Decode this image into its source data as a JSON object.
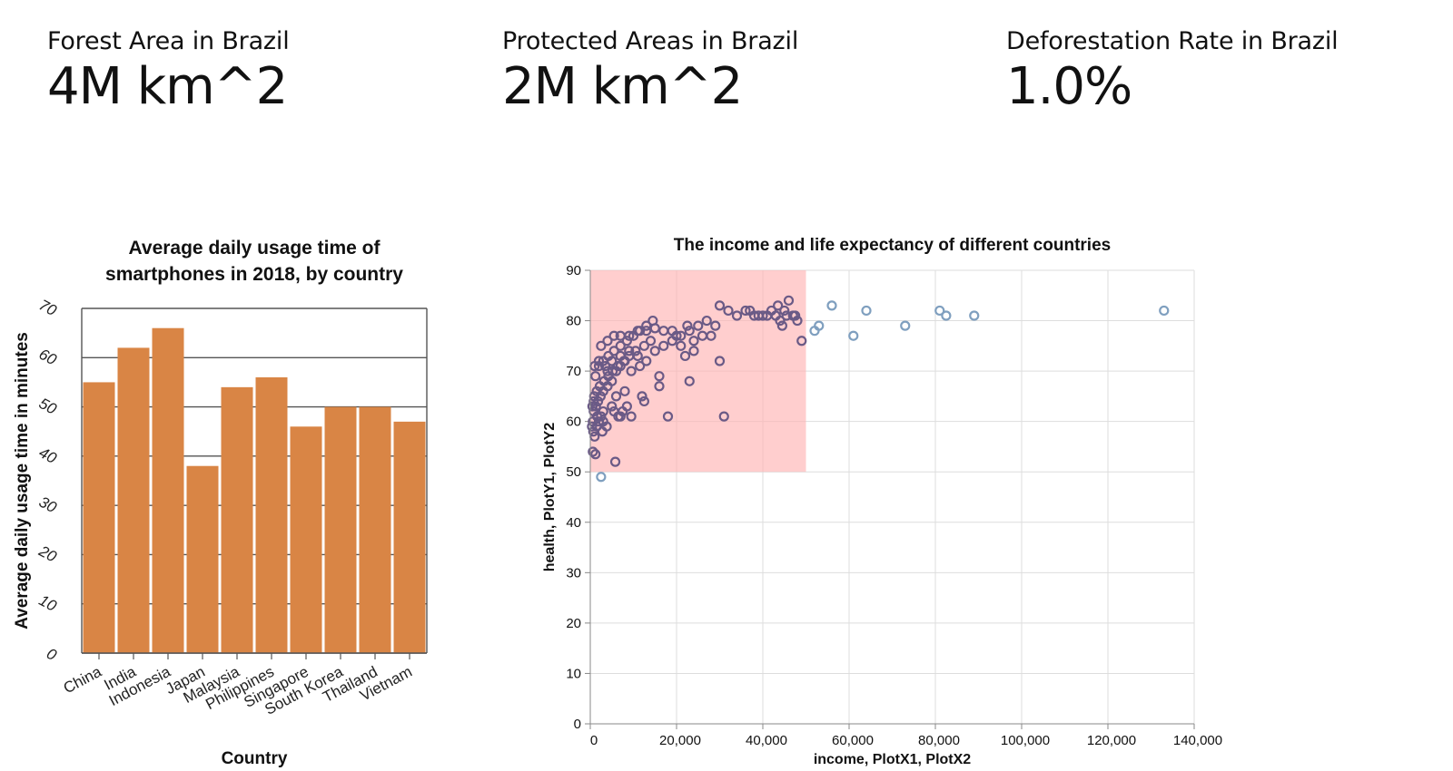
{
  "kpis": [
    {
      "label": "Forest Area in Brazil",
      "value": "4M km^2"
    },
    {
      "label": "Protected Areas in Brazil",
      "value": "2M km^2"
    },
    {
      "label": "Deforestation Rate in Brazil",
      "value": "1.0%"
    }
  ],
  "colors": {
    "bar": "#d98545",
    "scatter_stroke": "#7f9fbf",
    "scatter_selected": "#6a5a86",
    "brush": "#ffb3b3"
  },
  "chart_data": [
    {
      "type": "bar",
      "title_lines": [
        "Average daily usage time of",
        "smartphones in 2018, by country"
      ],
      "xlabel": "Country",
      "ylabel": "Average daily usage time in minutes",
      "ylim": [
        0,
        70
      ],
      "yticks": [
        "0",
        "10",
        "20",
        "30",
        "40",
        "50",
        "60",
        "70"
      ],
      "grid": true,
      "categories": [
        "China",
        "India",
        "Indonesia",
        "Japan",
        "Malaysia",
        "Philippines",
        "Singapore",
        "South Korea",
        "Thailand",
        "Vietnam"
      ],
      "values": [
        55,
        62,
        66,
        38,
        54,
        56,
        46,
        50,
        50,
        47
      ]
    },
    {
      "type": "scatter",
      "title": "The income and life expectancy of different countries",
      "xlabel": "income, PlotX1, PlotX2",
      "ylabel": "health, PlotY1, PlotY2",
      "xlim": [
        0,
        140000
      ],
      "ylim": [
        0,
        90
      ],
      "xticks": [
        "0",
        "20,000",
        "40,000",
        "60,000",
        "80,000",
        "100,000",
        "120,000",
        "140,000"
      ],
      "yticks": [
        "0",
        "10",
        "20",
        "30",
        "40",
        "50",
        "60",
        "70",
        "80",
        "90"
      ],
      "grid": true,
      "brush": {
        "x": [
          0,
          50000
        ],
        "y": [
          50,
          90
        ]
      },
      "points": [
        [
          600,
          54
        ],
        [
          1200,
          53.5
        ],
        [
          2500,
          49
        ],
        [
          5800,
          52
        ],
        [
          700,
          58
        ],
        [
          1000,
          57
        ],
        [
          1500,
          59
        ],
        [
          2000,
          60
        ],
        [
          2500,
          61
        ],
        [
          3000,
          60
        ],
        [
          800,
          62
        ],
        [
          1300,
          63
        ],
        [
          1800,
          64
        ],
        [
          2400,
          65
        ],
        [
          3000,
          66
        ],
        [
          4000,
          67
        ],
        [
          5000,
          68
        ],
        [
          6000,
          70
        ],
        [
          7000,
          71
        ],
        [
          8000,
          72
        ],
        [
          900,
          65
        ],
        [
          1500,
          66
        ],
        [
          2200,
          67
        ],
        [
          3200,
          68
        ],
        [
          4200,
          69
        ],
        [
          5200,
          70
        ],
        [
          6400,
          71
        ],
        [
          7800,
          72
        ],
        [
          9000,
          73
        ],
        [
          10500,
          74
        ],
        [
          1200,
          69
        ],
        [
          2000,
          71
        ],
        [
          3000,
          72
        ],
        [
          4200,
          73
        ],
        [
          5500,
          74
        ],
        [
          7000,
          75
        ],
        [
          8500,
          76
        ],
        [
          10000,
          77
        ],
        [
          11500,
          78
        ],
        [
          13000,
          79
        ],
        [
          2500,
          75
        ],
        [
          4000,
          76
        ],
        [
          5500,
          77
        ],
        [
          7000,
          77
        ],
        [
          9000,
          77
        ],
        [
          11000,
          78
        ],
        [
          13000,
          78
        ],
        [
          15000,
          78.5
        ],
        [
          17000,
          78
        ],
        [
          19000,
          78
        ],
        [
          3000,
          62
        ],
        [
          5000,
          63
        ],
        [
          7000,
          61
        ],
        [
          9500,
          61
        ],
        [
          6000,
          65
        ],
        [
          8000,
          66
        ],
        [
          12000,
          65
        ],
        [
          16000,
          67
        ],
        [
          12500,
          64
        ],
        [
          18000,
          61
        ],
        [
          15000,
          74
        ],
        [
          17000,
          75
        ],
        [
          19000,
          76
        ],
        [
          21000,
          77
        ],
        [
          23000,
          78
        ],
        [
          25000,
          79
        ],
        [
          27000,
          80
        ],
        [
          29000,
          79
        ],
        [
          24000,
          76
        ],
        [
          26000,
          77
        ],
        [
          28000,
          77
        ],
        [
          22000,
          73
        ],
        [
          24000,
          74
        ],
        [
          30000,
          83
        ],
        [
          32000,
          82
        ],
        [
          34000,
          81
        ],
        [
          36000,
          82
        ],
        [
          38000,
          81
        ],
        [
          40000,
          81
        ],
        [
          42000,
          82
        ],
        [
          43000,
          81
        ],
        [
          44000,
          80
        ],
        [
          45000,
          82
        ],
        [
          46000,
          84
        ],
        [
          47000,
          81
        ],
        [
          48000,
          80
        ],
        [
          49000,
          76
        ],
        [
          30000,
          72
        ],
        [
          31000,
          61
        ],
        [
          23000,
          68
        ],
        [
          16000,
          69
        ],
        [
          13000,
          72
        ],
        [
          11000,
          73
        ],
        [
          9000,
          74
        ],
        [
          7000,
          73
        ],
        [
          5000,
          72
        ],
        [
          4000,
          70
        ],
        [
          3500,
          71
        ],
        [
          2000,
          72
        ],
        [
          1000,
          71
        ],
        [
          500,
          63
        ],
        [
          600,
          60
        ],
        [
          400,
          59
        ],
        [
          800,
          64
        ],
        [
          1600,
          61
        ],
        [
          2800,
          58
        ],
        [
          3800,
          59
        ],
        [
          5500,
          62
        ],
        [
          6500,
          61
        ],
        [
          7500,
          62
        ],
        [
          8500,
          63
        ],
        [
          9500,
          70
        ],
        [
          11500,
          71
        ],
        [
          12500,
          75
        ],
        [
          14000,
          76
        ],
        [
          14500,
          80
        ],
        [
          20000,
          77
        ],
        [
          21000,
          75
        ],
        [
          22500,
          79
        ],
        [
          37000,
          82
        ],
        [
          39000,
          81
        ],
        [
          41000,
          81
        ],
        [
          43500,
          83
        ],
        [
          44500,
          79
        ],
        [
          45500,
          81
        ],
        [
          47500,
          81
        ],
        [
          52000,
          78
        ],
        [
          53000,
          79
        ],
        [
          56000,
          83
        ],
        [
          61000,
          77
        ],
        [
          64000,
          82
        ],
        [
          73000,
          79
        ],
        [
          81000,
          82
        ],
        [
          82500,
          81
        ],
        [
          89000,
          81
        ],
        [
          133000,
          82
        ]
      ]
    }
  ]
}
